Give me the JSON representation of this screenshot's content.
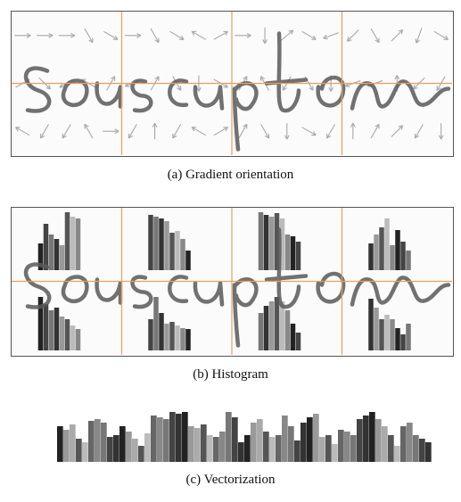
{
  "captions": {
    "a": "(a) Gradient orientation",
    "b": "(b) Histogram",
    "c": "(c) Vectorization"
  },
  "colors": {
    "grid_line": "#e8a060",
    "frame": "#555555",
    "arrow": "#a8a8a8",
    "ink": "#5a5a5a"
  },
  "cells_per_row": 4,
  "rows": 2,
  "arrow_directions_deg": [
    [
      0,
      0,
      0,
      300,
      330,
      30,
      315,
      210,
      150,
      60,
      150,
      240,
      240,
      120,
      0
    ],
    [
      0,
      300,
      330,
      150,
      30,
      200,
      60,
      300,
      270,
      330,
      240,
      90,
      240,
      150,
      30
    ],
    [
      0,
      270,
      40,
      330,
      200,
      60,
      120,
      240,
      300,
      270,
      60,
      300,
      270,
      330,
      240
    ],
    [
      225,
      300,
      45,
      250,
      330,
      200,
      200,
      90,
      225,
      240,
      90,
      60,
      45,
      240,
      270
    ]
  ],
  "histograms": [
    [
      [
        30,
        52,
        40,
        35,
        28,
        65,
        60,
        58
      ],
      [
        60,
        52,
        45,
        48,
        38,
        35,
        28,
        24
      ]
    ],
    [
      [
        62,
        60,
        58,
        55,
        42,
        44,
        35,
        22
      ],
      [
        35,
        60,
        42,
        30,
        32,
        28,
        25,
        24
      ]
    ],
    [
      [
        65,
        62,
        60,
        64,
        58,
        40,
        38,
        32
      ],
      [
        42,
        50,
        55,
        60,
        55,
        45,
        30,
        20
      ]
    ],
    [
      [
        30,
        40,
        48,
        58,
        28,
        45,
        32,
        22
      ],
      [
        58,
        48,
        35,
        40,
        35,
        25,
        18,
        30
      ]
    ]
  ],
  "vector_bars": [
    40,
    36,
    42,
    26,
    22,
    46,
    48,
    44,
    28,
    30,
    40,
    34,
    26,
    18,
    32,
    52,
    50,
    48,
    56,
    54,
    56,
    40,
    38,
    42,
    30,
    28,
    34,
    56,
    50,
    22,
    30,
    44,
    48,
    34,
    28,
    30,
    52,
    40,
    24,
    44,
    50,
    54,
    28,
    30,
    20,
    36,
    34,
    30,
    48,
    52,
    56,
    48,
    40,
    30,
    18,
    40,
    44,
    30,
    26,
    22
  ]
}
